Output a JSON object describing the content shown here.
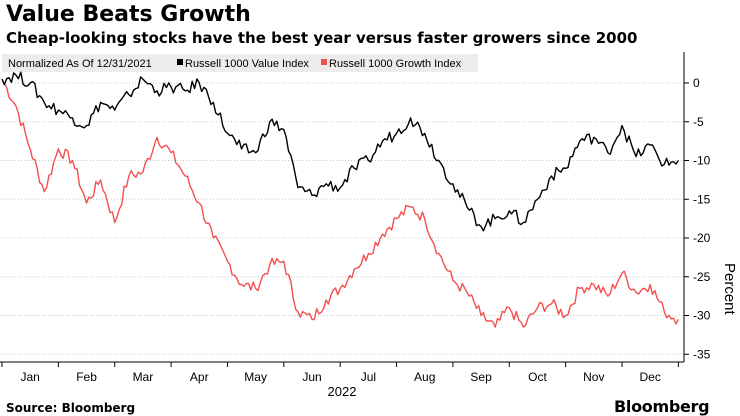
{
  "header": {
    "title": "Value Beats Growth",
    "subtitle": "Cheap-looking stocks have the best year versus faster growers since 2000"
  },
  "footer": {
    "source": "Source: Bloomberg",
    "brand": "Bloomberg"
  },
  "chart_data": {
    "type": "line",
    "title": "Value Beats Growth",
    "subtitle": "Cheap-looking stocks have the best year versus faster growers since 2000",
    "xlabel": "2022",
    "ylabel": "Percent",
    "legend_note": "Normalized As Of 12/31/2021",
    "legend_position": "top-left",
    "ylim": [
      -36,
      4
    ],
    "yticks": [
      0,
      -5,
      -10,
      -15,
      -20,
      -25,
      -30,
      -35
    ],
    "xlim": [
      0,
      12.1
    ],
    "x_ticks": [
      {
        "label": "Jan",
        "x": 0.5
      },
      {
        "label": "Feb",
        "x": 1.5
      },
      {
        "label": "Mar",
        "x": 2.5
      },
      {
        "label": "Apr",
        "x": 3.5
      },
      {
        "label": "May",
        "x": 4.5
      },
      {
        "label": "Jun",
        "x": 5.5
      },
      {
        "label": "Jul",
        "x": 6.5
      },
      {
        "label": "Aug",
        "x": 7.5
      },
      {
        "label": "Sep",
        "x": 8.5
      },
      {
        "label": "Oct",
        "x": 9.5
      },
      {
        "label": "Nov",
        "x": 10.5
      },
      {
        "label": "Dec",
        "x": 11.5
      }
    ],
    "series": [
      {
        "name": "Russell 1000 Value Index",
        "color": "#000000",
        "x": [
          0,
          0.25,
          0.5,
          0.75,
          1.0,
          1.25,
          1.5,
          1.75,
          2.0,
          2.25,
          2.5,
          2.75,
          3.0,
          3.25,
          3.5,
          3.75,
          4.0,
          4.25,
          4.5,
          4.75,
          5.0,
          5.25,
          5.5,
          5.75,
          6.0,
          6.25,
          6.5,
          6.75,
          7.0,
          7.25,
          7.5,
          7.75,
          8.0,
          8.25,
          8.5,
          8.75,
          9.0,
          9.25,
          9.5,
          9.75,
          10.0,
          10.25,
          10.5,
          10.75,
          11.0,
          11.25,
          11.5,
          11.75,
          12.0
        ],
        "values": [
          0.5,
          1.0,
          0.0,
          -2.5,
          -3.5,
          -4.5,
          -5.5,
          -2.5,
          -3.5,
          -1.5,
          0.5,
          -1.0,
          -0.5,
          -1.0,
          0.0,
          -2.5,
          -6.5,
          -8.5,
          -9.0,
          -5.0,
          -6.0,
          -13.5,
          -14.5,
          -13.0,
          -13.5,
          -11.0,
          -10.0,
          -7.5,
          -6.5,
          -4.5,
          -6.5,
          -10.0,
          -13.0,
          -16.0,
          -18.5,
          -17.5,
          -16.5,
          -18.0,
          -15.0,
          -12.0,
          -11.0,
          -7.5,
          -7.0,
          -9.0,
          -5.5,
          -9.5,
          -8.0,
          -10.5,
          -10.0
        ]
      },
      {
        "name": "Russell 1000 Growth Index",
        "color": "#f24f4f",
        "x": [
          0,
          0.25,
          0.5,
          0.75,
          1.0,
          1.25,
          1.5,
          1.75,
          2.0,
          2.25,
          2.5,
          2.75,
          3.0,
          3.25,
          3.5,
          3.75,
          4.0,
          4.25,
          4.5,
          4.75,
          5.0,
          5.25,
          5.5,
          5.75,
          6.0,
          6.25,
          6.5,
          6.75,
          7.0,
          7.25,
          7.5,
          7.75,
          8.0,
          8.25,
          8.5,
          8.75,
          9.0,
          9.25,
          9.5,
          9.75,
          10.0,
          10.25,
          10.5,
          10.75,
          11.0,
          11.25,
          11.5,
          11.75,
          12.0
        ],
        "values": [
          0.5,
          -3.0,
          -8.5,
          -14.0,
          -8.5,
          -10.0,
          -15.5,
          -12.5,
          -18.0,
          -12.0,
          -11.5,
          -7.0,
          -9.0,
          -12.0,
          -15.5,
          -20.0,
          -23.0,
          -26.0,
          -26.5,
          -23.5,
          -23.0,
          -29.5,
          -30.5,
          -28.0,
          -26.5,
          -24.0,
          -22.0,
          -19.5,
          -17.5,
          -16.0,
          -17.5,
          -22.0,
          -25.5,
          -27.0,
          -30.0,
          -31.5,
          -29.0,
          -31.5,
          -29.0,
          -28.5,
          -30.0,
          -26.5,
          -26.0,
          -27.5,
          -24.5,
          -27.0,
          -26.0,
          -29.5,
          -30.5
        ]
      }
    ]
  }
}
